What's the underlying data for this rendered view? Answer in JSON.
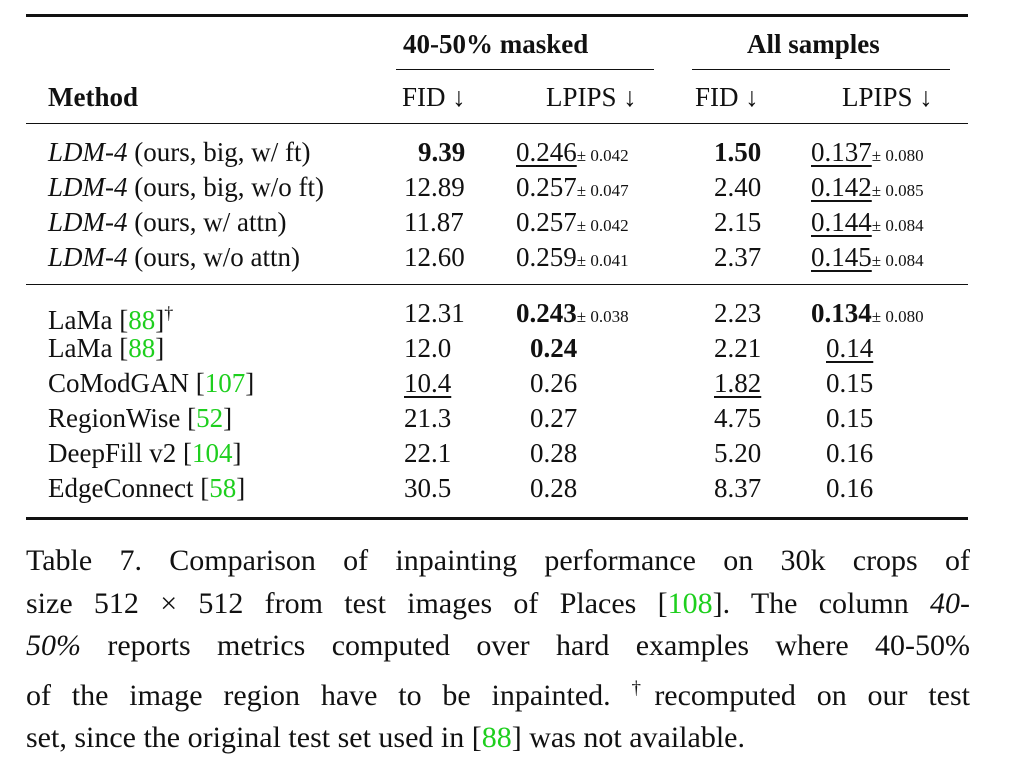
{
  "table": {
    "group_headers": {
      "masked": "40-50% masked",
      "all": "All samples"
    },
    "col_headers": {
      "method": "Method",
      "fid": "FID ↓",
      "lpips": "LPIPS ↓"
    },
    "rows_ours": [
      {
        "method_it": "LDM-4",
        "method_rest": " (ours, big, w/ ft)",
        "fid1": "9.39",
        "lpips1": "0.246",
        "lpips1_pm": "± 0.042",
        "fid2": "1.50",
        "lpips2": "0.137",
        "lpips2_pm": "± 0.080"
      },
      {
        "method_it": "LDM-4",
        "method_rest": " (ours, big, w/o ft)",
        "fid1": "12.89",
        "lpips1": "0.257",
        "lpips1_pm": "± 0.047",
        "fid2": "2.40",
        "lpips2": "0.142",
        "lpips2_pm": "± 0.085"
      },
      {
        "method_it": "LDM-4",
        "method_rest": " (ours, w/ attn)",
        "fid1": "11.87",
        "lpips1": "0.257",
        "lpips1_pm": "± 0.042",
        "fid2": "2.15",
        "lpips2": "0.144",
        "lpips2_pm": "± 0.084"
      },
      {
        "method_it": "LDM-4",
        "method_rest": " (ours, w/o attn)",
        "fid1": "12.60",
        "lpips1": "0.259",
        "lpips1_pm": "± 0.041",
        "fid2": "2.37",
        "lpips2": "0.145",
        "lpips2_pm": "± 0.084"
      }
    ],
    "rows_other": [
      {
        "name": "LaMa [",
        "cite": "88",
        "close": "]",
        "dagger": "†",
        "fid1": "12.31",
        "lpips1": "0.243",
        "lpips1_pm": "± 0.038",
        "fid2": "2.23",
        "lpips2": "0.134",
        "lpips2_pm": "± 0.080"
      },
      {
        "name": "LaMa [",
        "cite": "88",
        "close": "]",
        "fid1": "12.0",
        "lpips1": "0.24",
        "fid2": "2.21",
        "lpips2": "0.14"
      },
      {
        "name": "CoModGAN [",
        "cite": "107",
        "close": "]",
        "fid1": "10.4",
        "lpips1": "0.26",
        "fid2": "1.82",
        "lpips2": "0.15"
      },
      {
        "name": "RegionWise [",
        "cite": "52",
        "close": "]",
        "fid1": "21.3",
        "lpips1": "0.27",
        "fid2": "4.75",
        "lpips2": "0.15"
      },
      {
        "name": "DeepFill v2 [",
        "cite": "104",
        "close": "]",
        "fid1": "22.1",
        "lpips1": "0.28",
        "fid2": "5.20",
        "lpips2": "0.16"
      },
      {
        "name": "EdgeConnect [",
        "cite": "58",
        "close": "]",
        "fid1": "30.5",
        "lpips1": "0.28",
        "fid2": "8.37",
        "lpips2": "0.16"
      }
    ]
  },
  "caption": {
    "l1": "Table 7.  Comparison of inpainting performance on 30k crops of",
    "l2a": "size 512 × 512 from test images of Places [",
    "l2cite": "108",
    "l2b": "]. The column ",
    "l2it": "40-",
    "l3it": "50%",
    "l3b": " reports metrics computed over hard examples where 40-50%",
    "l4a": "of the image region have to be inpainted.  ",
    "l4dagger": "†",
    "l4b": "recomputed on our test",
    "l5a": "set, since the original test set used in [",
    "l5cite": "88",
    "l5b": "] was not available."
  }
}
